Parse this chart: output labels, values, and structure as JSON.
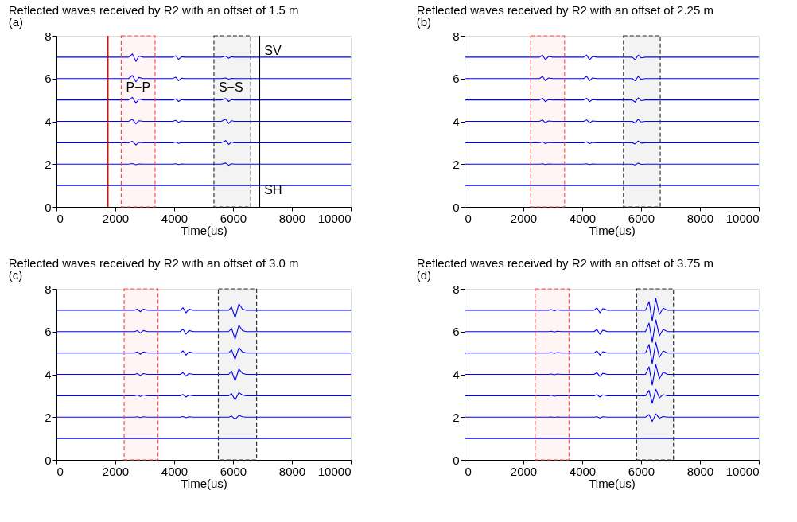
{
  "chart_data": [
    {
      "type": "line",
      "title": "Reflected waves received by R2 with an offset of 1.5 m",
      "subtitle": "(a)",
      "xlabel": "Time(us)",
      "xlim": [
        0,
        10000
      ],
      "xticks": [
        0,
        2000,
        4000,
        6000,
        8000,
        10000
      ],
      "ylim": [
        0,
        8
      ],
      "yticks": [
        0,
        2,
        4,
        6,
        8
      ],
      "x": [
        0,
        2450,
        2580,
        2700,
        2800,
        2950,
        3950,
        4050,
        4150,
        4250,
        4350,
        5600,
        5750,
        5850,
        5950,
        6050,
        10000
      ],
      "series": [
        {
          "color": "#0000ff",
          "values": [
            7,
            7,
            7.15,
            6.8,
            7.05,
            7,
            7,
            7.07,
            6.9,
            7.02,
            7,
            7,
            7.05,
            6.95,
            7.02,
            7,
            7
          ]
        },
        {
          "color": "#0000ff",
          "values": [
            6,
            6,
            6.15,
            5.85,
            6.05,
            6,
            6,
            6.07,
            5.9,
            6.02,
            6,
            6,
            6.03,
            5.97,
            6.01,
            6,
            6
          ]
        },
        {
          "color": "#0000ff",
          "values": [
            5,
            5,
            5.12,
            4.85,
            5.04,
            5,
            5,
            5.05,
            4.93,
            5.02,
            5,
            5,
            5.07,
            4.93,
            5.02,
            5,
            5
          ]
        },
        {
          "color": "#0000ff",
          "values": [
            4,
            4,
            4.1,
            3.88,
            4.03,
            4,
            4,
            4.05,
            3.95,
            4.02,
            4,
            4,
            4.1,
            3.9,
            4.03,
            4,
            4
          ]
        },
        {
          "color": "#0000ff",
          "values": [
            3,
            3,
            3.07,
            2.9,
            3.02,
            3,
            3,
            3.03,
            2.97,
            3.01,
            3,
            3,
            3.1,
            2.92,
            3.03,
            3,
            3
          ]
        },
        {
          "color": "#0000ff",
          "values": [
            2,
            2,
            2.03,
            1.97,
            2.01,
            2,
            2,
            2.02,
            1.98,
            2.01,
            2,
            2,
            2.05,
            1.95,
            2.02,
            2,
            2
          ]
        },
        {
          "color": "#0000ff",
          "values": [
            1,
            1,
            1,
            1,
            1,
            1,
            1,
            1,
            1,
            1,
            1,
            1,
            1,
            1,
            1,
            1,
            1
          ]
        }
      ],
      "bands": [
        {
          "axis": "x",
          "from": 2200,
          "to": 3350,
          "color": "#ff4d4d"
        },
        {
          "axis": "x",
          "from": 5350,
          "to": 6600,
          "color": "#333333"
        }
      ],
      "ref_lines": [
        {
          "axis": "x",
          "value": 1750,
          "color": "#ff0000"
        },
        {
          "axis": "x",
          "value": 6900,
          "color": "#000000"
        }
      ],
      "annotations": [
        {
          "text": "P−P",
          "x": 2200,
          "y": 5.6
        },
        {
          "text": "S−S",
          "x": 5350,
          "y": 5.6
        },
        {
          "text": "SV",
          "x": 6900,
          "y": 7.3
        },
        {
          "text": "SH",
          "x": 6900,
          "y": 0.8
        }
      ]
    },
    {
      "type": "line",
      "title": "Reflected waves received by R2 with an offset of 2.25 m",
      "subtitle": "(b)",
      "xlabel": "Time(us)",
      "xlim": [
        0,
        10000
      ],
      "xticks": [
        0,
        2000,
        4000,
        6000,
        8000,
        10000
      ],
      "ylim": [
        0,
        8
      ],
      "yticks": [
        0,
        2,
        4,
        6,
        8
      ],
      "x": [
        0,
        2550,
        2650,
        2750,
        2850,
        3000,
        4050,
        4150,
        4250,
        4350,
        4500,
        5700,
        5800,
        5900,
        6000,
        6150,
        10000
      ],
      "series": [
        {
          "color": "#0000ff",
          "values": [
            7,
            7,
            7.1,
            6.88,
            7.03,
            7,
            7,
            7.1,
            6.88,
            7.03,
            7,
            7,
            6.88,
            7.1,
            6.97,
            7,
            7
          ]
        },
        {
          "color": "#0000ff",
          "values": [
            6,
            6,
            6.1,
            5.9,
            6.03,
            6,
            6,
            6.1,
            5.9,
            6.03,
            6,
            6,
            5.9,
            6.1,
            5.97,
            6,
            6
          ]
        },
        {
          "color": "#0000ff",
          "values": [
            5,
            5,
            5.08,
            4.92,
            5.02,
            5,
            5,
            5.08,
            4.92,
            5.02,
            5,
            5,
            4.9,
            5.1,
            4.97,
            5,
            5
          ]
        },
        {
          "color": "#0000ff",
          "values": [
            4,
            4,
            4.07,
            3.93,
            4.02,
            4,
            4,
            4.07,
            3.93,
            4.02,
            4,
            4,
            3.92,
            4.1,
            3.97,
            4,
            4
          ]
        },
        {
          "color": "#0000ff",
          "values": [
            3,
            3,
            3.04,
            2.96,
            3.01,
            3,
            3,
            3.04,
            2.96,
            3.01,
            3,
            3,
            2.94,
            3.08,
            2.98,
            3,
            3
          ]
        },
        {
          "color": "#0000ff",
          "values": [
            2,
            2,
            2.02,
            1.98,
            2.01,
            2,
            2,
            2.02,
            1.98,
            2.01,
            2,
            2,
            1.96,
            2.05,
            1.99,
            2,
            2
          ]
        },
        {
          "color": "#0000ff",
          "values": [
            1,
            1,
            1,
            1,
            1,
            1,
            1,
            1,
            1,
            1,
            1,
            1,
            1,
            1,
            1,
            1,
            1
          ]
        }
      ],
      "bands": [
        {
          "axis": "x",
          "from": 2250,
          "to": 3400,
          "color": "#ff4d4d"
        },
        {
          "axis": "x",
          "from": 5400,
          "to": 6650,
          "color": "#333333"
        }
      ]
    },
    {
      "type": "line",
      "title": "Reflected waves received by R2 with an offset of 3.0 m",
      "subtitle": "(c)",
      "xlabel": "Time(us)",
      "xlim": [
        0,
        10000
      ],
      "xticks": [
        0,
        2000,
        4000,
        6000,
        8000,
        10000
      ],
      "ylim": [
        0,
        8
      ],
      "yticks": [
        0,
        2,
        4,
        6,
        8
      ],
      "x": [
        0,
        2650,
        2750,
        2850,
        2950,
        3100,
        4200,
        4300,
        4400,
        4500,
        4650,
        5850,
        5950,
        6070,
        6200,
        6320,
        6450,
        10000
      ],
      "series": [
        {
          "color": "#0000ff",
          "values": [
            7,
            7,
            7.05,
            6.93,
            7.05,
            7,
            7,
            7.12,
            6.88,
            7.05,
            7,
            7,
            7.15,
            6.65,
            7.3,
            7.05,
            7,
            7
          ]
        },
        {
          "color": "#0000ff",
          "values": [
            6,
            6,
            6.05,
            5.93,
            6.05,
            6,
            6,
            6.12,
            5.88,
            6.05,
            6,
            6,
            6.15,
            5.65,
            6.3,
            6.05,
            6,
            6
          ]
        },
        {
          "color": "#0000ff",
          "values": [
            5,
            5,
            5.05,
            4.94,
            5.05,
            5,
            5,
            5.1,
            4.9,
            5.05,
            5,
            5,
            5.15,
            4.7,
            5.25,
            5.05,
            5,
            5
          ]
        },
        {
          "color": "#0000ff",
          "values": [
            4,
            4,
            4.04,
            3.95,
            4.04,
            4,
            4,
            4.08,
            3.92,
            4.04,
            4,
            4,
            4.15,
            3.7,
            4.25,
            4.05,
            4,
            4
          ]
        },
        {
          "color": "#0000ff",
          "values": [
            3,
            3,
            3.03,
            2.97,
            3.03,
            3,
            3,
            3.06,
            2.94,
            3.03,
            3,
            3,
            3.1,
            2.8,
            3.15,
            3.03,
            3,
            3
          ]
        },
        {
          "color": "#0000ff",
          "values": [
            2,
            2,
            2.02,
            1.98,
            2.02,
            2,
            2,
            2.03,
            1.97,
            2.02,
            2,
            2,
            2.05,
            1.9,
            2.08,
            2.02,
            2,
            2
          ]
        },
        {
          "color": "#0000ff",
          "values": [
            1,
            1,
            1,
            1,
            1,
            1,
            1,
            1,
            1,
            1,
            1,
            1,
            1,
            1,
            1,
            1,
            1,
            1
          ]
        }
      ],
      "bands": [
        {
          "axis": "x",
          "from": 2300,
          "to": 3450,
          "color": "#ff4d4d"
        },
        {
          "axis": "x",
          "from": 5500,
          "to": 6800,
          "color": "#333333"
        }
      ]
    },
    {
      "type": "line",
      "title": "Reflected waves received by R2 with an offset of 3.75 m",
      "subtitle": "(d)",
      "xlabel": "Time(us)",
      "xlim": [
        0,
        10000
      ],
      "xticks": [
        0,
        2000,
        4000,
        6000,
        8000,
        10000
      ],
      "ylim": [
        0,
        8
      ],
      "yticks": [
        0,
        2,
        4,
        6,
        8
      ],
      "x": [
        0,
        2850,
        2950,
        3050,
        3150,
        3300,
        4400,
        4500,
        4600,
        4700,
        4850,
        6150,
        6270,
        6380,
        6500,
        6620,
        6750,
        6900,
        10000
      ],
      "series": [
        {
          "color": "#0000ff",
          "values": [
            7,
            7,
            7.03,
            6.97,
            7.02,
            7,
            7,
            7.12,
            6.88,
            7.08,
            7,
            7,
            7.4,
            6.5,
            7.55,
            6.8,
            7.1,
            7,
            7
          ]
        },
        {
          "color": "#0000ff",
          "values": [
            6,
            6,
            6.02,
            5.98,
            6.02,
            6,
            6,
            6.1,
            5.88,
            6.07,
            6,
            6,
            6.4,
            5.5,
            6.55,
            5.8,
            6.1,
            6,
            6
          ]
        },
        {
          "color": "#0000ff",
          "values": [
            5,
            5,
            5.02,
            4.98,
            5.02,
            5,
            5,
            5.1,
            4.9,
            5.06,
            5,
            5,
            5.4,
            4.5,
            5.5,
            4.8,
            5.1,
            5,
            5
          ]
        },
        {
          "color": "#0000ff",
          "values": [
            4,
            4,
            4.02,
            3.98,
            4.02,
            4,
            4,
            4.08,
            3.9,
            4.05,
            4,
            4,
            4.35,
            3.5,
            4.45,
            3.8,
            4.1,
            4,
            4
          ]
        },
        {
          "color": "#0000ff",
          "values": [
            3,
            3,
            3.02,
            2.98,
            3.01,
            3,
            3,
            3.05,
            2.94,
            3.04,
            3,
            3,
            3.25,
            2.65,
            3.3,
            2.9,
            3.05,
            3,
            3
          ]
        },
        {
          "color": "#0000ff",
          "values": [
            2,
            2,
            2.01,
            1.99,
            2.01,
            2,
            2,
            2.02,
            1.96,
            2.02,
            2,
            2,
            2.12,
            1.8,
            2.15,
            1.95,
            2.03,
            2,
            2
          ]
        },
        {
          "color": "#0000ff",
          "values": [
            1,
            1,
            1,
            1,
            1,
            1,
            1,
            1,
            1,
            1,
            1,
            1,
            1,
            1,
            1,
            1,
            1,
            1,
            1
          ]
        }
      ],
      "bands": [
        {
          "axis": "x",
          "from": 2400,
          "to": 3550,
          "color": "#ff4d4d"
        },
        {
          "axis": "x",
          "from": 5850,
          "to": 7100,
          "color": "#333333"
        }
      ]
    }
  ]
}
